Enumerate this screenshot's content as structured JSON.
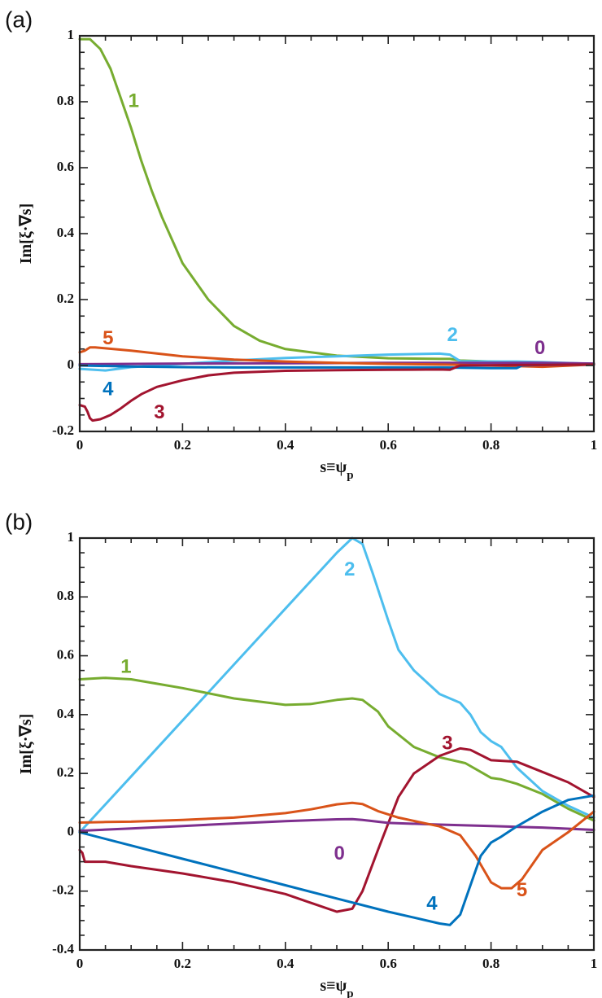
{
  "chart_data": [
    {
      "type": "line",
      "panel_label": "(a)",
      "xlabel": "s≡ψ_p",
      "ylabel": "Im[ξ·∇s]",
      "xlim": [
        0,
        1
      ],
      "ylim": [
        -0.2,
        1
      ],
      "xticks": [
        0,
        0.2,
        0.4,
        0.6,
        0.8,
        1
      ],
      "xtick_labels": [
        "0",
        "0.2",
        "0.4",
        "0.6",
        "0.8",
        "1"
      ],
      "yticks": [
        -0.2,
        0,
        0.2,
        0.4,
        0.6,
        0.8,
        1
      ],
      "ytick_labels": [
        "-0.2",
        "0",
        "0.2",
        "0.4",
        "0.6",
        "0.8",
        "1"
      ],
      "grid": false,
      "series": [
        {
          "name": "1",
          "color": "#77ac30",
          "label_at": [
            0.105,
            0.8
          ],
          "x": [
            0,
            0.02,
            0.04,
            0.06,
            0.08,
            0.1,
            0.12,
            0.14,
            0.16,
            0.18,
            0.2,
            0.25,
            0.3,
            0.35,
            0.4,
            0.5,
            0.6,
            0.7,
            0.72,
            0.74,
            0.8,
            0.9,
            1.0
          ],
          "y": [
            0.99,
            0.99,
            0.96,
            0.9,
            0.81,
            0.72,
            0.62,
            0.53,
            0.45,
            0.38,
            0.31,
            0.2,
            0.12,
            0.075,
            0.05,
            0.03,
            0.022,
            0.02,
            0.02,
            0.015,
            0.012,
            0.008,
            0.005
          ]
        },
        {
          "name": "2",
          "color": "#4dbeee",
          "label_at": [
            0.725,
            0.09
          ],
          "x": [
            0,
            0.05,
            0.1,
            0.2,
            0.3,
            0.4,
            0.5,
            0.6,
            0.7,
            0.72,
            0.74,
            0.8,
            0.85,
            0.9,
            1.0
          ],
          "y": [
            -0.01,
            -0.015,
            -0.005,
            0.005,
            0.015,
            0.023,
            0.028,
            0.033,
            0.036,
            0.033,
            0.013,
            0.012,
            0.012,
            0.01,
            0.005
          ]
        },
        {
          "name": "0",
          "color": "#7e2f8e",
          "label_at": [
            0.895,
            0.05
          ],
          "x": [
            0,
            0.2,
            0.4,
            0.6,
            0.8,
            0.9,
            1.0
          ],
          "y": [
            0.004,
            0.006,
            0.007,
            0.008,
            0.008,
            0.008,
            0.006
          ]
        },
        {
          "name": "5",
          "color": "#d95319",
          "label_at": [
            0.055,
            0.08
          ],
          "x": [
            0,
            0.01,
            0.02,
            0.03,
            0.05,
            0.1,
            0.2,
            0.3,
            0.4,
            0.5,
            0.6,
            0.7,
            0.8,
            0.9,
            1.0
          ],
          "y": [
            0.04,
            0.045,
            0.055,
            0.055,
            0.052,
            0.045,
            0.028,
            0.018,
            0.012,
            0.008,
            0.005,
            0.003,
            0,
            -0.004,
            0.003
          ]
        },
        {
          "name": "4",
          "color": "#0072bd",
          "label_at": [
            0.055,
            -0.075
          ],
          "x": [
            0,
            0.1,
            0.2,
            0.3,
            0.4,
            0.5,
            0.6,
            0.7,
            0.8,
            0.85,
            0.86,
            0.9,
            1.0
          ],
          "y": [
            0,
            -0.003,
            -0.005,
            -0.006,
            -0.006,
            -0.006,
            -0.006,
            -0.006,
            -0.008,
            -0.008,
            0.0,
            0.002,
            0.003
          ]
        },
        {
          "name": "3",
          "color": "#a2142f",
          "label_at": [
            0.155,
            -0.145
          ],
          "x": [
            0,
            0.01,
            0.015,
            0.02,
            0.025,
            0.04,
            0.06,
            0.08,
            0.1,
            0.12,
            0.15,
            0.2,
            0.25,
            0.3,
            0.4,
            0.5,
            0.6,
            0.7,
            0.72,
            0.74,
            0.8,
            0.9,
            1.0
          ],
          "y": [
            -0.12,
            -0.125,
            -0.14,
            -0.16,
            -0.167,
            -0.163,
            -0.15,
            -0.13,
            -0.107,
            -0.087,
            -0.065,
            -0.045,
            -0.03,
            -0.022,
            -0.016,
            -0.014,
            -0.013,
            -0.012,
            -0.013,
            0.0,
            0.001,
            0.002,
            0.003
          ]
        }
      ]
    },
    {
      "type": "line",
      "panel_label": "(b)",
      "xlabel": "s≡ψ_p",
      "ylabel": "Im[ξ·∇s]",
      "xlim": [
        0,
        1
      ],
      "ylim": [
        -0.4,
        1
      ],
      "xticks": [
        0,
        0.2,
        0.4,
        0.6,
        0.8,
        1
      ],
      "xtick_labels": [
        "0",
        "0.2",
        "0.4",
        "0.6",
        "0.8",
        "1"
      ],
      "yticks": [
        -0.4,
        -0.2,
        0,
        0.2,
        0.4,
        0.6,
        0.8,
        1
      ],
      "ytick_labels": [
        "-0.4",
        "-0.2",
        "0",
        "0.2",
        "0.4",
        "0.6",
        "0.8",
        "1"
      ],
      "grid": false,
      "series": [
        {
          "name": "2",
          "color": "#4dbeee",
          "label_at": [
            0.525,
            0.89
          ],
          "x": [
            0,
            0.1,
            0.2,
            0.3,
            0.4,
            0.5,
            0.53,
            0.55,
            0.57,
            0.6,
            0.62,
            0.65,
            0.7,
            0.74,
            0.76,
            0.78,
            0.8,
            0.82,
            0.85,
            0.9,
            0.95,
            1.0
          ],
          "y": [
            0,
            0.19,
            0.38,
            0.57,
            0.76,
            0.95,
            1.0,
            0.98,
            0.88,
            0.72,
            0.62,
            0.55,
            0.47,
            0.44,
            0.4,
            0.34,
            0.31,
            0.29,
            0.22,
            0.14,
            0.09,
            0.05
          ]
        },
        {
          "name": "1",
          "color": "#77ac30",
          "label_at": [
            0.09,
            0.56
          ],
          "x": [
            0,
            0.05,
            0.1,
            0.15,
            0.2,
            0.3,
            0.4,
            0.45,
            0.5,
            0.53,
            0.55,
            0.58,
            0.6,
            0.65,
            0.7,
            0.75,
            0.78,
            0.8,
            0.82,
            0.85,
            0.9,
            0.95,
            1.0
          ],
          "y": [
            0.52,
            0.525,
            0.52,
            0.505,
            0.49,
            0.455,
            0.433,
            0.436,
            0.45,
            0.455,
            0.45,
            0.41,
            0.36,
            0.29,
            0.255,
            0.235,
            0.205,
            0.185,
            0.18,
            0.165,
            0.13,
            0.08,
            0.04
          ]
        },
        {
          "name": "3",
          "color": "#a2142f",
          "label_at": [
            0.715,
            0.3
          ],
          "x": [
            0,
            0.005,
            0.01,
            0.05,
            0.1,
            0.2,
            0.3,
            0.4,
            0.45,
            0.5,
            0.53,
            0.55,
            0.58,
            0.6,
            0.62,
            0.65,
            0.7,
            0.74,
            0.76,
            0.8,
            0.85,
            0.9,
            0.95,
            1.0
          ],
          "y": [
            -0.06,
            -0.07,
            -0.1,
            -0.1,
            -0.115,
            -0.14,
            -0.17,
            -0.21,
            -0.24,
            -0.27,
            -0.26,
            -0.2,
            -0.06,
            0.03,
            0.12,
            0.2,
            0.26,
            0.285,
            0.28,
            0.245,
            0.24,
            0.205,
            0.17,
            0.12
          ]
        },
        {
          "name": "0",
          "color": "#7e2f8e",
          "label_at": [
            0.505,
            -0.075
          ],
          "x": [
            0,
            0.1,
            0.2,
            0.3,
            0.4,
            0.5,
            0.53,
            0.55,
            0.6,
            0.7,
            0.8,
            0.9,
            1.0
          ],
          "y": [
            0.005,
            0.013,
            0.021,
            0.03,
            0.038,
            0.044,
            0.045,
            0.042,
            0.032,
            0.026,
            0.021,
            0.016,
            0.008
          ]
        },
        {
          "name": "5",
          "color": "#d95319",
          "label_at": [
            0.86,
            -0.2
          ],
          "x": [
            0,
            0.05,
            0.1,
            0.2,
            0.3,
            0.4,
            0.45,
            0.5,
            0.53,
            0.55,
            0.58,
            0.62,
            0.66,
            0.7,
            0.74,
            0.77,
            0.8,
            0.82,
            0.84,
            0.86,
            0.9,
            0.95,
            1.0
          ],
          "y": [
            0.033,
            0.035,
            0.036,
            0.042,
            0.05,
            0.065,
            0.078,
            0.095,
            0.1,
            0.096,
            0.072,
            0.05,
            0.035,
            0.02,
            -0.01,
            -0.08,
            -0.17,
            -0.19,
            -0.19,
            -0.16,
            -0.06,
            0.0,
            0.07
          ]
        },
        {
          "name": "4",
          "color": "#0072bd",
          "label_at": [
            0.685,
            -0.245
          ],
          "x": [
            0,
            0.1,
            0.2,
            0.3,
            0.4,
            0.5,
            0.6,
            0.65,
            0.7,
            0.72,
            0.74,
            0.76,
            0.78,
            0.8,
            0.82,
            0.85,
            0.9,
            0.95,
            1.0
          ],
          "y": [
            0,
            -0.045,
            -0.09,
            -0.135,
            -0.18,
            -0.225,
            -0.27,
            -0.29,
            -0.31,
            -0.315,
            -0.28,
            -0.18,
            -0.08,
            -0.035,
            -0.015,
            0.02,
            0.07,
            0.11,
            0.125
          ]
        }
      ]
    }
  ]
}
